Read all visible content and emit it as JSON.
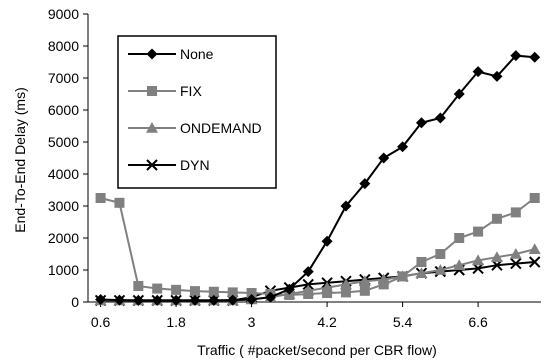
{
  "chart_data": {
    "type": "line",
    "title": "",
    "xlabel": "Traffic ( #packet/second per CBR flow)",
    "ylabel": "End-To-End Delay (ms)",
    "ylim": [
      0,
      9000
    ],
    "xlim": [
      0.4,
      7.6
    ],
    "yticks": [
      "0",
      "1000",
      "2000",
      "3000",
      "4000",
      "5000",
      "6000",
      "7000",
      "8000",
      "9000"
    ],
    "xticks": [
      "0.6",
      "1.8",
      "3",
      "4.2",
      "5.4",
      "6.6"
    ],
    "xtick_values": [
      0.6,
      1.8,
      3,
      4.2,
      5.4,
      6.6
    ],
    "grid": false,
    "legend_position": "top-left",
    "x": [
      0.6,
      0.9,
      1.2,
      1.5,
      1.8,
      2.1,
      2.4,
      2.7,
      3.0,
      3.3,
      3.6,
      3.9,
      4.2,
      4.5,
      4.8,
      5.1,
      5.4,
      5.7,
      6.0,
      6.3,
      6.6,
      6.9,
      7.2,
      7.5
    ],
    "series": [
      {
        "name": "None",
        "marker": "diamond",
        "color": "#000000",
        "values": [
          80,
          60,
          50,
          50,
          50,
          50,
          50,
          60,
          80,
          150,
          400,
          950,
          1900,
          3000,
          3700,
          4500,
          4850,
          5600,
          5750,
          6500,
          7200,
          7050,
          7700,
          7650
        ]
      },
      {
        "name": "FIX",
        "marker": "square",
        "color": "#808080",
        "values": [
          3250,
          3100,
          500,
          420,
          380,
          340,
          320,
          300,
          280,
          250,
          220,
          250,
          280,
          300,
          350,
          550,
          800,
          1250,
          1500,
          2000,
          2200,
          2600,
          2800,
          3250
        ]
      },
      {
        "name": "ONDEMAND",
        "marker": "triangle",
        "color": "#808080",
        "values": [
          50,
          50,
          50,
          50,
          50,
          50,
          50,
          50,
          80,
          150,
          250,
          350,
          450,
          550,
          650,
          700,
          800,
          900,
          1000,
          1150,
          1300,
          1400,
          1500,
          1650
        ]
      },
      {
        "name": "DYN",
        "marker": "x",
        "color": "#000000",
        "values": [
          50,
          50,
          50,
          50,
          50,
          50,
          50,
          50,
          150,
          350,
          450,
          550,
          600,
          650,
          700,
          750,
          800,
          900,
          950,
          1000,
          1050,
          1150,
          1200,
          1250
        ]
      }
    ]
  }
}
